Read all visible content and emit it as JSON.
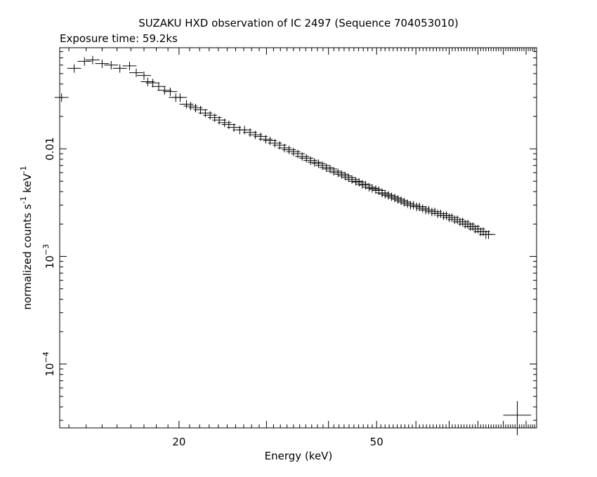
{
  "title": "SUZAKU HXD observation of IC 2497 (Sequence 704053010)",
  "subtitle": "Exposure time: 59.2ks",
  "chart_data": {
    "type": "scatter",
    "title": "SUZAKU HXD observation of IC 2497 (Sequence 704053010)",
    "subtitle": "Exposure time: 59.2ks",
    "xlabel": "Energy (keV)",
    "ylabel_parts": [
      "normalized counts s",
      "-1",
      " keV",
      "-1"
    ],
    "xscale": "log",
    "yscale": "log",
    "xlim": [
      11.5,
      105
    ],
    "ylim": [
      2.55e-05,
      0.087
    ],
    "x_ticks": [
      {
        "value": 20,
        "label": "20"
      },
      {
        "value": 50,
        "label": "50"
      }
    ],
    "y_ticks": [
      {
        "value": 0.01,
        "mant": "0.01",
        "exp": ""
      },
      {
        "value": 0.001,
        "mant": "10",
        "exp": "−3"
      },
      {
        "value": 0.0001,
        "mant": "10",
        "exp": "−4"
      }
    ],
    "grid": false,
    "legend": "none",
    "color": "#000000",
    "errorbar_x_halfwidth": 0.014,
    "errorbar_y_relerr": 0.09,
    "series": [
      {
        "points": [
          [
            11.6,
            0.03
          ],
          [
            12.3,
            0.056
          ],
          [
            12.9,
            0.065
          ],
          [
            13.4,
            0.067
          ],
          [
            14.0,
            0.062
          ],
          [
            14.6,
            0.06
          ],
          [
            15.2,
            0.056
          ],
          [
            15.9,
            0.059
          ],
          [
            16.4,
            0.051
          ],
          [
            17.0,
            0.048
          ],
          [
            17.3,
            0.042
          ],
          [
            17.7,
            0.041
          ],
          [
            18.2,
            0.038
          ],
          [
            18.7,
            0.035
          ],
          [
            19.2,
            0.034
          ],
          [
            19.7,
            0.03
          ],
          [
            20.1,
            0.03
          ],
          [
            20.7,
            0.026
          ],
          [
            21.1,
            0.025
          ],
          [
            21.6,
            0.024
          ],
          [
            22.1,
            0.023
          ],
          [
            22.6,
            0.0215
          ],
          [
            23.1,
            0.0205
          ],
          [
            23.6,
            0.0195
          ],
          [
            24.1,
            0.0185
          ],
          [
            24.7,
            0.0175
          ],
          [
            25.2,
            0.0168
          ],
          [
            25.8,
            0.0158
          ],
          [
            26.5,
            0.015
          ],
          [
            27.1,
            0.015
          ],
          [
            27.8,
            0.0142
          ],
          [
            28.5,
            0.0135
          ],
          [
            29.2,
            0.013
          ],
          [
            29.9,
            0.0123
          ],
          [
            30.5,
            0.0119
          ],
          [
            31.2,
            0.0113
          ],
          [
            31.9,
            0.0108
          ],
          [
            32.6,
            0.0102
          ],
          [
            33.3,
            0.0098
          ],
          [
            34.0,
            0.0094
          ],
          [
            34.7,
            0.009
          ],
          [
            35.4,
            0.0085
          ],
          [
            36.1,
            0.0082
          ],
          [
            36.8,
            0.0078
          ],
          [
            37.5,
            0.0075
          ],
          [
            38.2,
            0.0073
          ],
          [
            38.9,
            0.007
          ],
          [
            39.6,
            0.0067
          ],
          [
            40.3,
            0.0065
          ],
          [
            41.0,
            0.0062
          ],
          [
            41.8,
            0.006
          ],
          [
            42.5,
            0.0058
          ],
          [
            43.2,
            0.0056
          ],
          [
            43.9,
            0.0054
          ],
          [
            44.6,
            0.0052
          ],
          [
            45.4,
            0.005
          ],
          [
            46.1,
            0.0049
          ],
          [
            46.8,
            0.0047
          ],
          [
            47.5,
            0.0046
          ],
          [
            48.3,
            0.0044
          ],
          [
            49.0,
            0.0043
          ],
          [
            49.8,
            0.0042
          ],
          [
            50.5,
            0.0041
          ],
          [
            51.3,
            0.0039
          ],
          [
            52.0,
            0.0038
          ],
          [
            52.8,
            0.0037
          ],
          [
            53.6,
            0.0036
          ],
          [
            54.4,
            0.0035
          ],
          [
            55.2,
            0.0034
          ],
          [
            56.0,
            0.0033
          ],
          [
            56.8,
            0.0032
          ],
          [
            57.7,
            0.0031
          ],
          [
            58.5,
            0.003
          ],
          [
            59.3,
            0.003
          ],
          [
            60.2,
            0.0029
          ],
          [
            61.0,
            0.0029
          ],
          [
            61.9,
            0.0028
          ],
          [
            62.8,
            0.0027
          ],
          [
            63.7,
            0.0027
          ],
          [
            64.6,
            0.0026
          ],
          [
            65.5,
            0.0026
          ],
          [
            66.4,
            0.0025
          ],
          [
            67.3,
            0.0025
          ],
          [
            68.2,
            0.0024
          ],
          [
            69.1,
            0.0024
          ],
          [
            70.0,
            0.0023
          ],
          [
            70.9,
            0.0023
          ],
          [
            71.8,
            0.0022
          ],
          [
            72.7,
            0.0022
          ],
          [
            73.6,
            0.0021
          ],
          [
            74.5,
            0.0021
          ],
          [
            75.4,
            0.002
          ],
          [
            76.3,
            0.002
          ],
          [
            77.2,
            0.0019
          ],
          [
            78.1,
            0.0019
          ],
          [
            79.0,
            0.0018
          ],
          [
            80.0,
            0.0018
          ],
          [
            81.0,
            0.0017
          ],
          [
            82.0,
            0.0017
          ],
          [
            83.0,
            0.0016
          ],
          [
            84.0,
            0.0016
          ]
        ]
      }
    ],
    "corner_marker": {
      "x": 96.0,
      "y": 3.35e-05,
      "x_halfwidth_dex": 0.028,
      "y_relerr": 0.35
    }
  }
}
